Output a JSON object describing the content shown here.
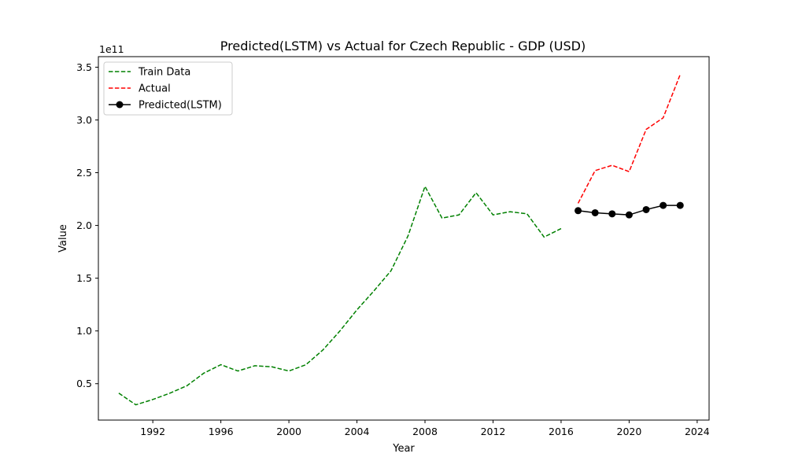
{
  "chart_data": {
    "type": "line",
    "title": "Predicted(LSTM) vs Actual for Czech Republic - GDP (USD)",
    "xlabel": "Year",
    "ylabel": "Value",
    "y_offset_label": "1e11",
    "xlim": [
      1988.8,
      2024.7
    ],
    "ylim": [
      0.155,
      3.6
    ],
    "y_scale_exponent": 11,
    "x_ticks": [
      1992,
      1996,
      2000,
      2004,
      2008,
      2012,
      2016,
      2020,
      2024
    ],
    "y_ticks": [
      0.5,
      1.0,
      1.5,
      2.0,
      2.5,
      3.0,
      3.5
    ],
    "y_tick_labels": [
      "0.5",
      "1.0",
      "1.5",
      "2.0",
      "2.5",
      "3.0",
      "3.5"
    ],
    "grid": false,
    "legend_position": "top-left",
    "series": [
      {
        "name": "Train Data",
        "color": "#008000",
        "style": "dashed",
        "marker": "none",
        "x": [
          1990,
          1991,
          1992,
          1993,
          1994,
          1995,
          1996,
          1997,
          1998,
          1999,
          2000,
          2001,
          2002,
          2003,
          2004,
          2005,
          2006,
          2007,
          2008,
          2009,
          2010,
          2011,
          2012,
          2013,
          2014,
          2015,
          2016
        ],
        "y": [
          0.41,
          0.3,
          0.35,
          0.41,
          0.48,
          0.6,
          0.68,
          0.62,
          0.67,
          0.66,
          0.62,
          0.68,
          0.82,
          1.0,
          1.2,
          1.38,
          1.57,
          1.9,
          2.37,
          2.07,
          2.1,
          2.31,
          2.1,
          2.13,
          2.11,
          1.89,
          1.97
        ]
      },
      {
        "name": "Actual",
        "color": "#ff0000",
        "style": "dashed",
        "marker": "none",
        "x": [
          2017,
          2018,
          2019,
          2020,
          2021,
          2022,
          2023
        ],
        "y": [
          2.21,
          2.52,
          2.57,
          2.51,
          2.91,
          3.02,
          3.43
        ]
      },
      {
        "name": "Predicted(LSTM)",
        "color": "#000000",
        "style": "solid",
        "marker": "circle",
        "x": [
          2017,
          2018,
          2019,
          2020,
          2021,
          2022,
          2023
        ],
        "y": [
          2.14,
          2.12,
          2.11,
          2.1,
          2.15,
          2.19,
          2.19
        ]
      }
    ]
  }
}
